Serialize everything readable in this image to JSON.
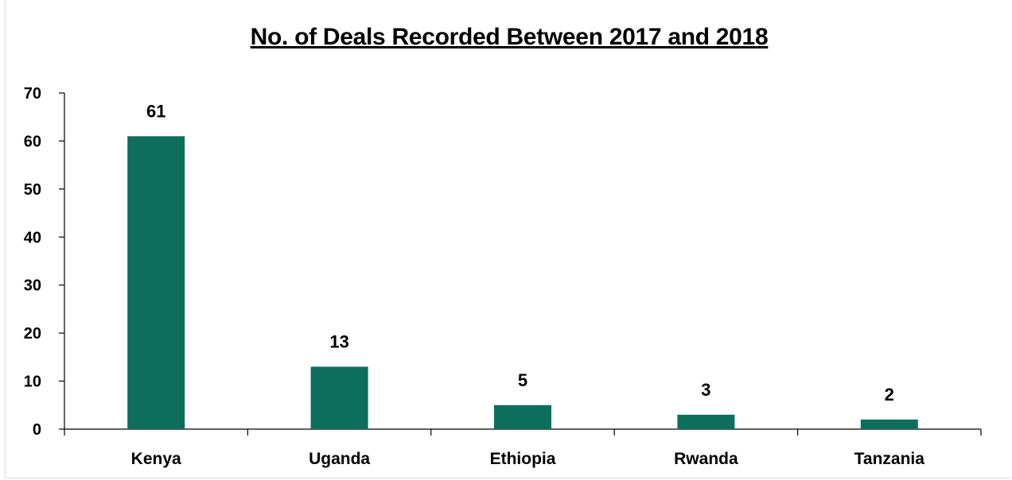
{
  "chart_data": {
    "type": "bar",
    "title": "No. of Deals Recorded Between 2017 and 2018",
    "xlabel": "",
    "ylabel": "",
    "categories": [
      "Kenya",
      "Uganda",
      "Ethiopia",
      "Rwanda",
      "Tanzania"
    ],
    "values": [
      61,
      13,
      5,
      3,
      2
    ],
    "data_labels": [
      "61",
      "13",
      "5",
      "3",
      "2"
    ],
    "ylim": [
      0,
      70
    ],
    "yticks": [
      0,
      10,
      20,
      30,
      40,
      50,
      60,
      70
    ],
    "ytick_labels": [
      "0",
      "10",
      "20",
      "30",
      "40",
      "50",
      "60",
      "70"
    ],
    "grid": false,
    "legend": "none",
    "bar_color": "#0e6e5c"
  }
}
